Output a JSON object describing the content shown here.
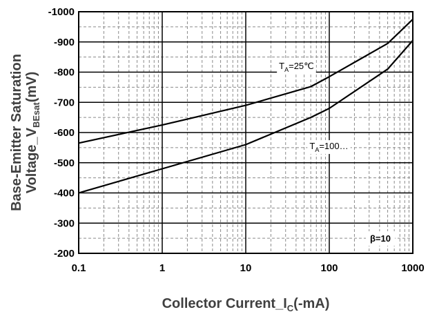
{
  "chart_data": {
    "type": "line",
    "x_scale": "log",
    "y_scale": "linear",
    "xlim": [
      0.1,
      1000
    ],
    "ylim": [
      -200,
      -1000
    ],
    "grid": true,
    "xlabel": {
      "main": "Collector Current_I",
      "sub": "C",
      "tail": "(-mA)"
    },
    "ylabel": {
      "line1": "Base-Emitter Saturation",
      "line2_main": "Voltage_V",
      "line2_sub": "BEsat",
      "line2_tail": "(mV)"
    },
    "x_ticks": [
      0.1,
      1,
      10,
      100,
      1000
    ],
    "x_tick_labels": [
      "0.1",
      "1",
      "10",
      "100",
      "1000"
    ],
    "y_ticks": [
      -200,
      -300,
      -400,
      -500,
      -600,
      -700,
      -800,
      -900,
      -1000
    ],
    "y_tick_labels": [
      "-200",
      "-300",
      "-400",
      "-500",
      "-600",
      "-700",
      "-800",
      "-900",
      "-1000"
    ],
    "series": [
      {
        "label_main": "T",
        "label_sub": "A",
        "label_tail": "=25℃",
        "x": [
          0.1,
          1,
          10,
          60,
          100,
          500,
          1000
        ],
        "y": [
          -565,
          -625,
          -690,
          -752,
          -785,
          -895,
          -975
        ]
      },
      {
        "label_main": "T",
        "label_sub": "A",
        "label_tail": "=100…",
        "x": [
          0.1,
          1,
          10,
          60,
          100,
          500,
          1000
        ],
        "y": [
          -400,
          -480,
          -560,
          -650,
          -680,
          -810,
          -905
        ]
      }
    ],
    "annotation": "β=10"
  }
}
